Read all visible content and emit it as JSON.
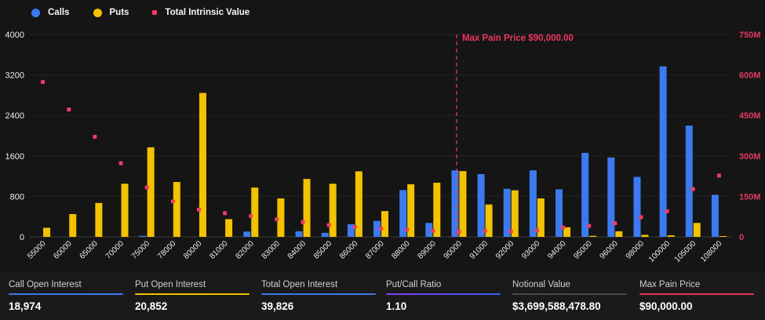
{
  "legend": {
    "items": [
      {
        "label": "Calls",
        "color": "#3b7af0",
        "shape": "circle"
      },
      {
        "label": "Puts",
        "color": "#f3c200",
        "shape": "circle"
      },
      {
        "label": "Total Intrinsic Value",
        "color": "#f23a63",
        "shape": "square"
      }
    ]
  },
  "chart_data": {
    "type": "bar",
    "title": "",
    "categories": [
      "55000",
      "60000",
      "65000",
      "70000",
      "75000",
      "78000",
      "80000",
      "81000",
      "82000",
      "83000",
      "84000",
      "85000",
      "86000",
      "87000",
      "88000",
      "89000",
      "90000",
      "91000",
      "92000",
      "93000",
      "94000",
      "95000",
      "96000",
      "98000",
      "100000",
      "105000",
      "108000"
    ],
    "series": [
      {
        "name": "Calls",
        "type": "bar",
        "axis": "left",
        "color": "#3b7af0",
        "values": [
          0,
          0,
          0,
          0,
          20,
          0,
          0,
          0,
          105,
          0,
          110,
          80,
          250,
          315,
          925,
          275,
          1315,
          1240,
          950,
          1315,
          940,
          1660,
          1570,
          1185,
          3370,
          2200,
          830
        ]
      },
      {
        "name": "Puts",
        "type": "bar",
        "axis": "left",
        "color": "#f3c200",
        "values": [
          180,
          450,
          670,
          1050,
          1770,
          1085,
          2845,
          350,
          975,
          760,
          1145,
          1050,
          1295,
          510,
          1040,
          1070,
          1300,
          640,
          920,
          760,
          190,
          20,
          110,
          40,
          30,
          275,
          15
        ]
      },
      {
        "name": "Total Intrinsic Value",
        "type": "scatter",
        "axis": "right",
        "color": "#f23a63",
        "values_millions": [
          574,
          472,
          371,
          273,
          183,
          131,
          101,
          88,
          77,
          65,
          55,
          44,
          37,
          30,
          27,
          22,
          19,
          22,
          20,
          24,
          35,
          41,
          50,
          73,
          95,
          177,
          227
        ]
      }
    ],
    "left_axis": {
      "ticks": [
        0,
        800,
        1600,
        2400,
        3200,
        4000
      ],
      "range": [
        0,
        4000
      ],
      "label_color": "#ededed"
    },
    "right_axis": {
      "tick_labels": [
        "0",
        "150M",
        "300M",
        "450M",
        "600M",
        "750M"
      ],
      "range_millions": [
        0,
        750
      ],
      "label_color": "#e23a60"
    },
    "annotation": {
      "label": "Max Pain Price $90,000.00",
      "category": "90000",
      "color": "#ef3560"
    },
    "grid": true,
    "legend_position": "top-left",
    "xlabel": "",
    "ylabel": ""
  },
  "stats": {
    "items": [
      {
        "label": "Call Open Interest",
        "value": "18,974",
        "underline": "#3b7af0"
      },
      {
        "label": "Put Open Interest",
        "value": "20,852",
        "underline": "#f3c200"
      },
      {
        "label": "Total Open Interest",
        "value": "39,826",
        "underline": "#3b7af0"
      },
      {
        "label": "Put/Call Ratio",
        "value": "1.10",
        "underline": "linear-gradient(90deg,#8a3cf5,#3b62f0)"
      },
      {
        "label": "Notional Value",
        "value": "$3,699,588,478.80",
        "underline": "#454a54"
      },
      {
        "label": "Max Pain Price",
        "value": "$90,000.00",
        "underline": "#e8315b"
      }
    ]
  }
}
